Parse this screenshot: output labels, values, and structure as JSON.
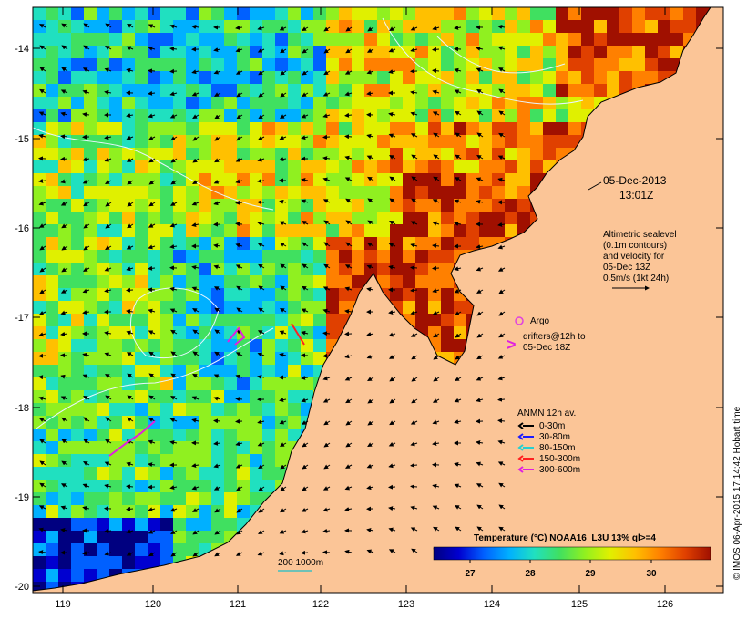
{
  "map": {
    "x_ticks": [
      "119",
      "120",
      "121",
      "122",
      "123",
      "124",
      "125",
      "126"
    ],
    "y_ticks": [
      "-14",
      "-15",
      "-16",
      "-17",
      "-18",
      "-19",
      "-20"
    ],
    "lon_range": [
      118.7,
      126.7
    ],
    "lat_range": [
      -20.1,
      -13.55
    ],
    "colors": {
      "land": "#fbc597",
      "coastline": "#000000",
      "contour": "#e8f6ff",
      "arrows": "#000000",
      "argo": "#e040e0",
      "drifter": "#e020e0"
    }
  },
  "annotations": {
    "date": "05-Dec-2013",
    "time": "13:01Z",
    "altimetry_lines": [
      "Altimetric sealevel",
      "(0.1m contours)",
      "and velocity for",
      "05-Dec 13Z",
      "0.5m/s (1kt 24h)"
    ],
    "argo_label": "Argo",
    "drifter_lines": [
      "drifters@12h to",
      "05-Dec 18Z"
    ],
    "depth_contour_label": "200  1000m"
  },
  "legend": {
    "title": "ANMN 12h av.",
    "items": [
      {
        "label": "0-30m",
        "color": "#000000"
      },
      {
        "label": "30-80m",
        "color": "#1a1aff"
      },
      {
        "label": "80-150m",
        "color": "#25d0d0"
      },
      {
        "label": "150-300m",
        "color": "#ff2020"
      },
      {
        "label": "300-600m",
        "color": "#e020e0"
      }
    ]
  },
  "colorbar": {
    "title": "Temperature (°C) NOAA16_L3U 13% ql>=4",
    "ticks": [
      "27",
      "28",
      "29",
      "30"
    ],
    "stops": [
      "#000080",
      "#0000d0",
      "#0060ff",
      "#00b0ff",
      "#20e0c0",
      "#40e060",
      "#90f020",
      "#e0f000",
      "#ffc000",
      "#ff8000",
      "#e04000",
      "#a01000"
    ]
  },
  "credit": "© IMOS 06-Apr-2015 17:14:42 Hobart time"
}
